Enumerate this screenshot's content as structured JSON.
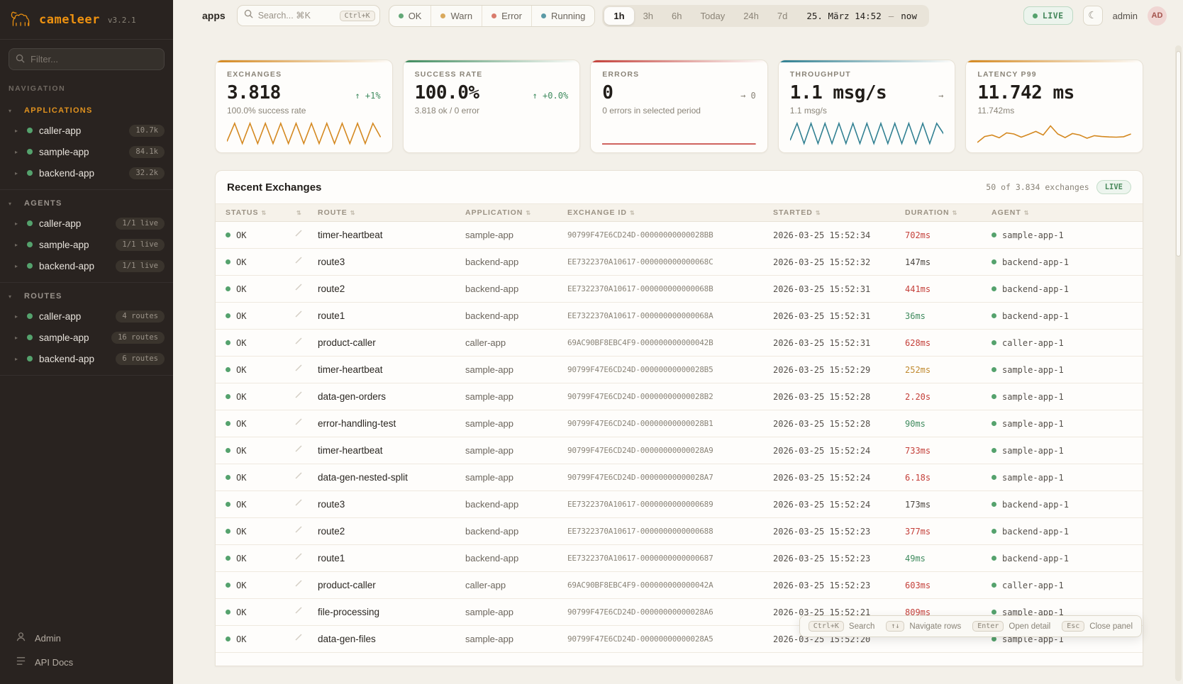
{
  "brand": {
    "name": "cameleer",
    "version": "v3.2.1"
  },
  "sidebar": {
    "filter_placeholder": "Filter...",
    "nav_label": "NAVIGATION",
    "sections": [
      {
        "label": "APPLICATIONS",
        "accent": true,
        "items": [
          {
            "name": "caller-app",
            "badge": "10.7k"
          },
          {
            "name": "sample-app",
            "badge": "84.1k"
          },
          {
            "name": "backend-app",
            "badge": "32.2k"
          }
        ]
      },
      {
        "label": "AGENTS",
        "accent": false,
        "items": [
          {
            "name": "caller-app",
            "badge": "1/1 live"
          },
          {
            "name": "sample-app",
            "badge": "1/1 live"
          },
          {
            "name": "backend-app",
            "badge": "1/1 live"
          }
        ]
      },
      {
        "label": "ROUTES",
        "accent": false,
        "items": [
          {
            "name": "caller-app",
            "badge": "4 routes"
          },
          {
            "name": "sample-app",
            "badge": "16 routes"
          },
          {
            "name": "backend-app",
            "badge": "6 routes"
          }
        ]
      }
    ],
    "footer": [
      {
        "label": "Admin",
        "icon": "admin-icon"
      },
      {
        "label": "API Docs",
        "icon": "api-docs-icon"
      }
    ]
  },
  "header": {
    "context": "apps",
    "search_placeholder": "Search... ⌘K",
    "search_kbd": "Ctrl+K",
    "status_filters": [
      {
        "label": "OK",
        "color": "#63a877"
      },
      {
        "label": "Warn",
        "color": "#d9a95c"
      },
      {
        "label": "Error",
        "color": "#d97b6c"
      },
      {
        "label": "Running",
        "color": "#5b9aa6"
      }
    ],
    "ranges": [
      "1h",
      "3h",
      "6h",
      "Today",
      "24h",
      "7d"
    ],
    "active_range": "1h",
    "date_label": "25. März 14:52",
    "date_sep": "—",
    "date_now": "now",
    "live_label": "LIVE",
    "moon_glyph": "☾",
    "user": "admin",
    "avatar": "AD"
  },
  "cards": [
    {
      "label": "EXCHANGES",
      "value": "3.818",
      "delta": "↑ +1%",
      "delta_color": "green",
      "sub": "100.0% success rate",
      "accent": "#d4881f",
      "spark_color": "#d4881f",
      "spark": [
        0.15,
        1,
        0.05,
        1,
        0.05,
        1,
        0.05,
        1,
        0.05,
        1,
        0.05,
        1,
        0.05,
        1,
        0.05,
        1,
        0.05,
        1,
        0.05,
        1,
        0.35
      ]
    },
    {
      "label": "SUCCESS RATE",
      "value": "100.0%",
      "delta": "↑ +0.0%",
      "delta_color": "green",
      "sub": "3.818 ok / 0 error",
      "accent": "#3f8b5e",
      "spark_color": "",
      "spark": []
    },
    {
      "label": "ERRORS",
      "value": "0",
      "delta": "→ 0",
      "delta_color": "gray",
      "sub": "0 errors in selected period",
      "accent": "#c4403a",
      "spark_color": "#c4403a",
      "spark": [
        0.03,
        0.03
      ]
    },
    {
      "label": "THROUGHPUT",
      "value": "1.1 msg/s",
      "delta": "→",
      "delta_color": "gray",
      "sub": "1.1 msg/s",
      "accent": "#2f7f91",
      "spark_color": "#2f7f91",
      "spark": [
        0.2,
        1,
        0.05,
        1,
        0.05,
        1,
        0.05,
        1,
        0.05,
        1,
        0.05,
        1,
        0.05,
        1,
        0.05,
        1,
        0.05,
        1,
        0.05,
        1,
        0.05,
        1,
        0.5
      ]
    },
    {
      "label": "LATENCY P99",
      "value": "11.742 ms",
      "delta": "",
      "delta_color": "gray",
      "sub": "11.742ms",
      "accent": "#d4881f",
      "spark_color": "#d4881f",
      "spark": [
        0.1,
        0.38,
        0.45,
        0.32,
        0.55,
        0.5,
        0.35,
        0.48,
        0.62,
        0.45,
        0.88,
        0.5,
        0.33,
        0.52,
        0.45,
        0.3,
        0.42,
        0.38,
        0.36,
        0.35,
        0.37,
        0.5
      ]
    }
  ],
  "table": {
    "title": "Recent Exchanges",
    "count_label": "50 of 3.834 exchanges",
    "live_label": "LIVE",
    "columns": [
      {
        "label": "STATUS",
        "sortable": true
      },
      {
        "label": "",
        "sortable": true
      },
      {
        "label": "ROUTE",
        "sortable": true
      },
      {
        "label": "APPLICATION",
        "sortable": true
      },
      {
        "label": "EXCHANGE ID",
        "sortable": true
      },
      {
        "label": "STARTED",
        "sortable": true
      },
      {
        "label": "DURATION",
        "sortable": true
      },
      {
        "label": "AGENT",
        "sortable": true
      }
    ],
    "rows": [
      {
        "status": "OK",
        "route": "timer-heartbeat",
        "app": "sample-app",
        "id": "90799F47E6CD24D-00000000000028BB",
        "started": "2026-03-25 15:52:34",
        "duration": "702ms",
        "dcolor": "red",
        "agent": "sample-app-1"
      },
      {
        "status": "OK",
        "route": "route3",
        "app": "backend-app",
        "id": "EE7322370A10617-000000000000068C",
        "started": "2026-03-25 15:52:32",
        "duration": "147ms",
        "dcolor": "neutral",
        "agent": "backend-app-1"
      },
      {
        "status": "OK",
        "route": "route2",
        "app": "backend-app",
        "id": "EE7322370A10617-000000000000068B",
        "started": "2026-03-25 15:52:31",
        "duration": "441ms",
        "dcolor": "red",
        "agent": "backend-app-1"
      },
      {
        "status": "OK",
        "route": "route1",
        "app": "backend-app",
        "id": "EE7322370A10617-000000000000068A",
        "started": "2026-03-25 15:52:31",
        "duration": "36ms",
        "dcolor": "green",
        "agent": "backend-app-1"
      },
      {
        "status": "OK",
        "route": "product-caller",
        "app": "caller-app",
        "id": "69AC90BF8EBC4F9-000000000000042B",
        "started": "2026-03-25 15:52:31",
        "duration": "628ms",
        "dcolor": "red",
        "agent": "caller-app-1"
      },
      {
        "status": "OK",
        "route": "timer-heartbeat",
        "app": "sample-app",
        "id": "90799F47E6CD24D-00000000000028B5",
        "started": "2026-03-25 15:52:29",
        "duration": "252ms",
        "dcolor": "amber",
        "agent": "sample-app-1"
      },
      {
        "status": "OK",
        "route": "data-gen-orders",
        "app": "sample-app",
        "id": "90799F47E6CD24D-00000000000028B2",
        "started": "2026-03-25 15:52:28",
        "duration": "2.20s",
        "dcolor": "red",
        "agent": "sample-app-1"
      },
      {
        "status": "OK",
        "route": "error-handling-test",
        "app": "sample-app",
        "id": "90799F47E6CD24D-00000000000028B1",
        "started": "2026-03-25 15:52:28",
        "duration": "90ms",
        "dcolor": "green",
        "agent": "sample-app-1"
      },
      {
        "status": "OK",
        "route": "timer-heartbeat",
        "app": "sample-app",
        "id": "90799F47E6CD24D-00000000000028A9",
        "started": "2026-03-25 15:52:24",
        "duration": "733ms",
        "dcolor": "red",
        "agent": "sample-app-1"
      },
      {
        "status": "OK",
        "route": "data-gen-nested-split",
        "app": "sample-app",
        "id": "90799F47E6CD24D-00000000000028A7",
        "started": "2026-03-25 15:52:24",
        "duration": "6.18s",
        "dcolor": "red",
        "agent": "sample-app-1"
      },
      {
        "status": "OK",
        "route": "route3",
        "app": "backend-app",
        "id": "EE7322370A10617-0000000000000689",
        "started": "2026-03-25 15:52:24",
        "duration": "173ms",
        "dcolor": "neutral",
        "agent": "backend-app-1"
      },
      {
        "status": "OK",
        "route": "route2",
        "app": "backend-app",
        "id": "EE7322370A10617-0000000000000688",
        "started": "2026-03-25 15:52:23",
        "duration": "377ms",
        "dcolor": "red",
        "agent": "backend-app-1"
      },
      {
        "status": "OK",
        "route": "route1",
        "app": "backend-app",
        "id": "EE7322370A10617-0000000000000687",
        "started": "2026-03-25 15:52:23",
        "duration": "49ms",
        "dcolor": "green",
        "agent": "backend-app-1"
      },
      {
        "status": "OK",
        "route": "product-caller",
        "app": "caller-app",
        "id": "69AC90BF8EBC4F9-000000000000042A",
        "started": "2026-03-25 15:52:23",
        "duration": "603ms",
        "dcolor": "red",
        "agent": "caller-app-1"
      },
      {
        "status": "OK",
        "route": "file-processing",
        "app": "sample-app",
        "id": "90799F47E6CD24D-00000000000028A6",
        "started": "2026-03-25 15:52:21",
        "duration": "809ms",
        "dcolor": "red",
        "agent": "sample-app-1"
      },
      {
        "status": "OK",
        "route": "data-gen-files",
        "app": "sample-app",
        "id": "90799F47E6CD24D-00000000000028A5",
        "started": "2026-03-25 15:52:20",
        "duration": "",
        "dcolor": "neutral",
        "agent": "sample-app-1"
      }
    ]
  },
  "shortcuts": [
    {
      "keys": "Ctrl+K",
      "label": "Search"
    },
    {
      "keys": "↑↓",
      "label": "Navigate rows"
    },
    {
      "keys": "Enter",
      "label": "Open detail"
    },
    {
      "keys": "Esc",
      "label": "Close panel"
    }
  ],
  "colors": {
    "sidebar_bg": "#292320",
    "accent_orange": "#ee9210",
    "main_bg": "#f3f0e9",
    "ok_green": "#55a26d",
    "error_red": "#c4403a",
    "teal": "#2f7f91",
    "duration_red": "#c4403a",
    "duration_amber": "#c08a2f",
    "duration_green": "#3f8b5e"
  }
}
